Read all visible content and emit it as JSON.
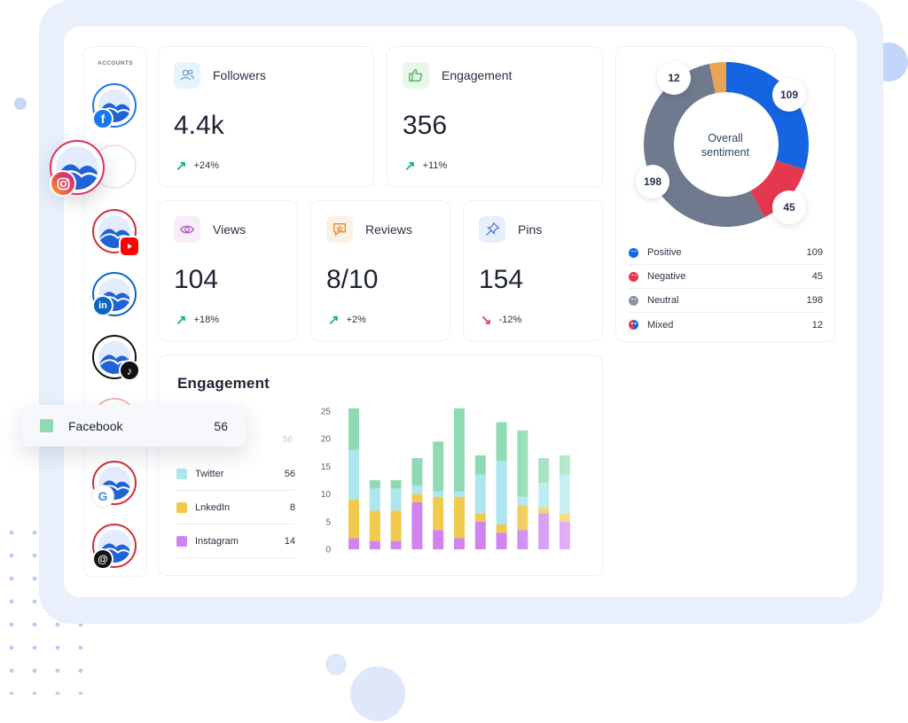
{
  "accounts_label": "ACCOUNTS",
  "accounts": [
    {
      "network": "facebook",
      "badge_color": "#1877f2",
      "badge_text": "f"
    },
    {
      "network": "instagram",
      "badge_color": "#e4405f",
      "badge_text": ""
    },
    {
      "network": "youtube",
      "badge_color": "#ff0000",
      "badge_text": ""
    },
    {
      "network": "linkedin",
      "badge_color": "#0a66c2",
      "badge_text": "in"
    },
    {
      "network": "tiktok",
      "badge_color": "#111111",
      "badge_text": "♪"
    },
    {
      "network": "google",
      "badge_color": "#ffffff",
      "badge_text": "G"
    },
    {
      "network": "threads",
      "badge_color": "#111111",
      "badge_text": "@"
    }
  ],
  "metrics": {
    "followers": {
      "title": "Followers",
      "value": "4.4k",
      "delta": "+24%",
      "trend": "up"
    },
    "engagement": {
      "title": "Engagement",
      "value": "356",
      "delta": "+11%",
      "trend": "up"
    },
    "views": {
      "title": "Views",
      "value": "104",
      "delta": "+18%",
      "trend": "up"
    },
    "reviews": {
      "title": "Reviews",
      "value": "8/10",
      "delta": "+2%",
      "trend": "up"
    },
    "pins": {
      "title": "Pins",
      "value": "154",
      "delta": "-12%",
      "trend": "down"
    }
  },
  "sentiment": {
    "center_label_line1": "Overall",
    "center_label_line2": "sentiment",
    "items": [
      {
        "label": "Positive",
        "value": "109",
        "color": "#1565e0"
      },
      {
        "label": "Negative",
        "value": "45",
        "color": "#e5384f"
      },
      {
        "label": "Neutral",
        "value": "198",
        "color": "#6f7a8e"
      },
      {
        "label": "Mixed",
        "value": "12",
        "color": "#e9a352"
      }
    ]
  },
  "engagement_chart": {
    "title": "Engagement",
    "faded_value": "56",
    "legend": [
      {
        "label": "Twitter",
        "value": "56",
        "color": "#ade6ee"
      },
      {
        "label": "LnkedIn",
        "value": "8",
        "color": "#f0c94d"
      },
      {
        "label": "Instagram",
        "value": "14",
        "color": "#cf84f0"
      }
    ]
  },
  "tooltip": {
    "label": "Facebook",
    "value": "56",
    "color": "#8edbb3"
  },
  "chart_data": {
    "type": "bar",
    "stacked": true,
    "ylim": [
      0,
      25
    ],
    "yticks": [
      "25",
      "20",
      "15",
      "10",
      "5",
      "0"
    ],
    "series": [
      {
        "name": "Instagram",
        "color": "#cf84f0",
        "values": [
          2,
          1.5,
          1.5,
          8.5,
          3.5,
          2,
          5,
          3,
          3.5,
          6.5,
          5
        ]
      },
      {
        "name": "LnkedIn",
        "color": "#f0c94d",
        "values": [
          7,
          5.5,
          5.5,
          1.5,
          6,
          7.5,
          1.5,
          1.5,
          4.5,
          1,
          1.5
        ]
      },
      {
        "name": "Twitter",
        "color": "#ade6ee",
        "values": [
          9,
          4,
          4,
          1.5,
          1,
          1,
          7,
          11.5,
          1.5,
          4.5,
          7
        ]
      },
      {
        "name": "Facebook",
        "color": "#8edbb3",
        "values": [
          7.5,
          1.5,
          1.5,
          5,
          9,
          15,
          3.5,
          7,
          12,
          4.5,
          3.5
        ]
      }
    ]
  }
}
